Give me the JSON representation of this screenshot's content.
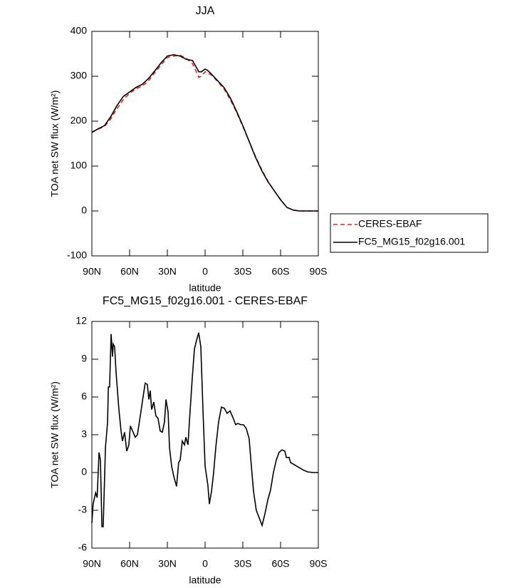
{
  "chart_data": [
    {
      "type": "line",
      "title": "JJA",
      "xlabel": "latitude",
      "ylabel": "TOA net SW flux (W/m²)",
      "xlim": [
        90,
        -90
      ],
      "xticks": [
        {
          "value": 90,
          "label": "90N"
        },
        {
          "value": 60,
          "label": "60N"
        },
        {
          "value": 30,
          "label": "30N"
        },
        0,
        {
          "value": -30,
          "label": "30S"
        },
        {
          "value": -60,
          "label": "60S"
        },
        {
          "value": -90,
          "label": "90S"
        }
      ],
      "ylim": [
        -100,
        400
      ],
      "yticks": [
        -100,
        0,
        100,
        200,
        300,
        400
      ],
      "legend": "right",
      "x": [
        90,
        85,
        80,
        75,
        70,
        65,
        60,
        55,
        50,
        45,
        40,
        35,
        30,
        25,
        20,
        15,
        10,
        7,
        5,
        3,
        0,
        -2,
        -5,
        -10,
        -15,
        -20,
        -25,
        -30,
        -35,
        -40,
        -45,
        -50,
        -55,
        -60,
        -65,
        -70,
        -75,
        -80,
        -85,
        -90
      ],
      "series": [
        {
          "name": "CERES-EBAF",
          "color": "#e8201c",
          "linestyle": "dashed",
          "values": [
            176,
            182,
            188,
            205,
            228,
            248,
            262,
            272,
            278,
            290,
            308,
            325,
            342,
            345,
            347,
            340,
            328,
            310,
            298,
            300,
            310,
            307,
            303,
            288,
            272,
            248,
            220,
            188,
            155,
            122,
            92,
            66,
            45,
            25,
            8,
            2,
            0,
            0,
            0,
            0
          ]
        },
        {
          "name": "FC5_MG15_f02g16.001",
          "color": "#000000",
          "linestyle": "solid",
          "values": [
            175,
            183,
            190,
            210,
            235,
            255,
            265,
            275,
            282,
            295,
            312,
            330,
            345,
            348,
            345,
            338,
            335,
            320,
            310,
            310,
            316,
            313,
            305,
            290,
            275,
            252,
            222,
            190,
            155,
            120,
            90,
            65,
            45,
            25,
            8,
            2,
            0,
            0,
            0,
            0
          ]
        }
      ]
    },
    {
      "type": "line",
      "title": "FC5_MG15_f02g16.001 - CERES-EBAF",
      "xlabel": "latitude",
      "ylabel": "TOA net SW flux (W/m²)",
      "xlim": [
        90,
        -90
      ],
      "xticks": [
        {
          "value": 90,
          "label": "90N"
        },
        {
          "value": 60,
          "label": "60N"
        },
        {
          "value": 30,
          "label": "30N"
        },
        0,
        {
          "value": -30,
          "label": "30S"
        },
        {
          "value": -60,
          "label": "60S"
        },
        {
          "value": -90,
          "label": "90S"
        }
      ],
      "ylim": [
        -6,
        12
      ],
      "yticks": [
        -6,
        -3,
        0,
        3,
        6,
        9,
        12
      ],
      "x": [
        90,
        89,
        87,
        85.8,
        84.3,
        83.2,
        82,
        81,
        79.2,
        77.5,
        76.9,
        75.9,
        74.7,
        73.6,
        73,
        71.9,
        70.8,
        68.5,
        66.8,
        65.7,
        64,
        62.3,
        60.6,
        59.4,
        57.2,
        55.5,
        53.8,
        51.5,
        49.3,
        47.6,
        45.9,
        44.7,
        43.6,
        42.5,
        40.8,
        39.1,
        37.4,
        35.7,
        34,
        32.3,
        31.1,
        29.4,
        28.3,
        26.6,
        24.9,
        22.7,
        21,
        19.8,
        18.1,
        16.4,
        15.3,
        13.6,
        12.5,
        10.2,
        8.5,
        6.8,
        5.1,
        3.4,
        1.7,
        0,
        -2.2,
        -3.4,
        -5.1,
        -6.8,
        -8.5,
        -10.7,
        -13,
        -15.3,
        -17.5,
        -19.8,
        -22,
        -24.3,
        -26,
        -28.3,
        -30.5,
        -32.7,
        -35,
        -36.8,
        -38.5,
        -40.7,
        -43,
        -45.3,
        -47.5,
        -49.8,
        -52,
        -54.3,
        -56.6,
        -58.8,
        -61.1,
        -63.4,
        -64.5,
        -66.8,
        -67.9,
        -71.3,
        -74.7,
        -78,
        -81.5,
        -86,
        -90
      ],
      "series": [
        {
          "color": "#000000",
          "linestyle": "solid",
          "values": [
            -4,
            -2.5,
            -1.6,
            -2,
            1.6,
            1,
            -4.3,
            -4.3,
            2,
            4,
            6.8,
            6.8,
            11,
            9.2,
            10.2,
            10,
            8,
            5,
            3.3,
            2.5,
            3.2,
            1.7,
            2.2,
            3.7,
            3.2,
            2.8,
            3,
            4.5,
            6,
            7.1,
            7,
            5.8,
            6.5,
            5,
            5.6,
            4.5,
            4.3,
            3.3,
            3.2,
            4,
            5.8,
            4.8,
            2,
            0.5,
            -0.3,
            -1.1,
            0.8,
            1,
            2.5,
            2.2,
            2.8,
            2.2,
            4,
            7.5,
            9.8,
            10.5,
            11.1,
            10,
            5,
            0.5,
            -1,
            -2.5,
            -1.5,
            0,
            2,
            4,
            5.2,
            5.1,
            4.7,
            4.9,
            4.4,
            3.8,
            3.9,
            3.8,
            3.8,
            3.5,
            2.7,
            0.5,
            -1.5,
            -3,
            -3.6,
            -4.2,
            -3.3,
            -2.2,
            -1.4,
            0,
            1,
            1.6,
            1.8,
            1.7,
            1.2,
            1.2,
            0.8,
            0.6,
            0.4,
            0.2,
            0.05,
            0,
            0
          ]
        }
      ]
    }
  ]
}
